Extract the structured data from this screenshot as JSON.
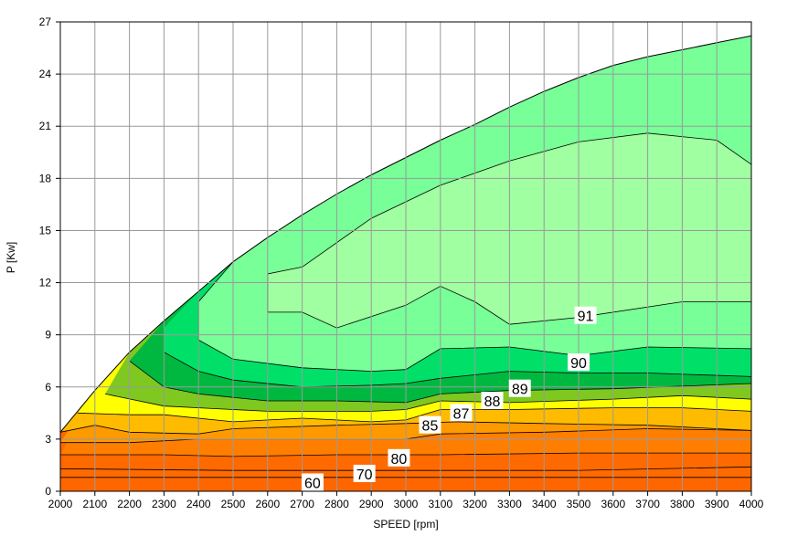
{
  "chart_data": {
    "type": "contour",
    "xlabel": "SPEED [rpm]",
    "ylabel": "P [Kw]",
    "xlim": [
      2000,
      4000
    ],
    "ylim": [
      0,
      27
    ],
    "x_ticks": [
      "2000",
      "2100",
      "2200",
      "2300",
      "2400",
      "2500",
      "2600",
      "2700",
      "2800",
      "2900",
      "3000",
      "3100",
      "3200",
      "3300",
      "3400",
      "3500",
      "3600",
      "3700",
      "3800",
      "3900",
      "4000"
    ],
    "y_ticks": [
      "0",
      "3",
      "6",
      "9",
      "12",
      "15",
      "18",
      "21",
      "24",
      "27"
    ],
    "grid": true,
    "envelope": [
      {
        "x": 2000,
        "y": 3.4
      },
      {
        "x": 2100,
        "y": 5.8
      },
      {
        "x": 2200,
        "y": 8.0
      },
      {
        "x": 2300,
        "y": 9.8
      },
      {
        "x": 2400,
        "y": 11.5
      },
      {
        "x": 2500,
        "y": 13.2
      },
      {
        "x": 2600,
        "y": 14.6
      },
      {
        "x": 2700,
        "y": 15.9
      },
      {
        "x": 2800,
        "y": 17.1
      },
      {
        "x": 2900,
        "y": 18.2
      },
      {
        "x": 3000,
        "y": 19.2
      },
      {
        "x": 3100,
        "y": 20.2
      },
      {
        "x": 3200,
        "y": 21.1
      },
      {
        "x": 3300,
        "y": 22.1
      },
      {
        "x": 3400,
        "y": 23.0
      },
      {
        "x": 3500,
        "y": 23.8
      },
      {
        "x": 3600,
        "y": 24.5
      },
      {
        "x": 3700,
        "y": 25.0
      },
      {
        "x": 3800,
        "y": 25.4
      },
      {
        "x": 3900,
        "y": 25.8
      },
      {
        "x": 4000,
        "y": 26.2
      }
    ],
    "levels": [
      {
        "label": "",
        "color": "#ff6a00",
        "boundary": [
          {
            "x": 2000,
            "y": 0.8
          },
          {
            "x": 2500,
            "y": 0.8
          },
          {
            "x": 3000,
            "y": 0.8
          },
          {
            "x": 3500,
            "y": 0.8
          },
          {
            "x": 4000,
            "y": 0.8
          }
        ]
      },
      {
        "label": "60",
        "color": "#ff6a00",
        "boundary": [
          {
            "x": 2000,
            "y": 1.3
          },
          {
            "x": 2500,
            "y": 1.2
          },
          {
            "x": 3000,
            "y": 1.2
          },
          {
            "x": 3500,
            "y": 1.2
          },
          {
            "x": 4000,
            "y": 1.4
          }
        ]
      },
      {
        "label": "70",
        "color": "#ff7e00",
        "boundary": [
          {
            "x": 2000,
            "y": 2.1
          },
          {
            "x": 2300,
            "y": 2.1
          },
          {
            "x": 2500,
            "y": 2.0
          },
          {
            "x": 2800,
            "y": 2.1
          },
          {
            "x": 3100,
            "y": 2.1
          },
          {
            "x": 3500,
            "y": 2.2
          },
          {
            "x": 4000,
            "y": 2.2
          }
        ]
      },
      {
        "label": "80",
        "color": "#ff9900",
        "boundary": [
          {
            "x": 2000,
            "y": 2.8
          },
          {
            "x": 2200,
            "y": 2.8
          },
          {
            "x": 2400,
            "y": 3.0
          },
          {
            "x": 2700,
            "y": 3.0
          },
          {
            "x": 3000,
            "y": 3.0
          },
          {
            "x": 3100,
            "y": 3.3
          },
          {
            "x": 3400,
            "y": 3.4
          },
          {
            "x": 3700,
            "y": 3.6
          },
          {
            "x": 4000,
            "y": 3.5
          }
        ]
      },
      {
        "label": "",
        "color": "#ffbb00",
        "boundary": [
          {
            "x": 2000,
            "y": 3.4
          },
          {
            "x": 2100,
            "y": 3.8
          },
          {
            "x": 2200,
            "y": 3.4
          },
          {
            "x": 2400,
            "y": 3.3
          },
          {
            "x": 2500,
            "y": 3.6
          },
          {
            "x": 2800,
            "y": 3.8
          },
          {
            "x": 3000,
            "y": 3.9
          },
          {
            "x": 3150,
            "y": 4.0
          },
          {
            "x": 3400,
            "y": 3.9
          },
          {
            "x": 3700,
            "y": 3.8
          },
          {
            "x": 4000,
            "y": 3.5
          }
        ]
      },
      {
        "label": "85",
        "color": "#ffff00",
        "boundary": [
          {
            "x": 2050,
            "y": 4.5
          },
          {
            "x": 2200,
            "y": 4.4
          },
          {
            "x": 2300,
            "y": 4.4
          },
          {
            "x": 2500,
            "y": 4.0
          },
          {
            "x": 2700,
            "y": 4.2
          },
          {
            "x": 2900,
            "y": 4.0
          },
          {
            "x": 3000,
            "y": 4.1
          },
          {
            "x": 3100,
            "y": 4.7
          },
          {
            "x": 3300,
            "y": 4.7
          },
          {
            "x": 3600,
            "y": 4.8
          },
          {
            "x": 3800,
            "y": 4.8
          },
          {
            "x": 4000,
            "y": 4.6
          }
        ]
      },
      {
        "label": "87",
        "color": "#7ec820",
        "boundary": [
          {
            "x": 2130,
            "y": 5.6
          },
          {
            "x": 2300,
            "y": 4.9
          },
          {
            "x": 2400,
            "y": 4.8
          },
          {
            "x": 2600,
            "y": 4.6
          },
          {
            "x": 2900,
            "y": 4.6
          },
          {
            "x": 3000,
            "y": 4.7
          },
          {
            "x": 3100,
            "y": 5.2
          },
          {
            "x": 3300,
            "y": 5.1
          },
          {
            "x": 3600,
            "y": 5.3
          },
          {
            "x": 3800,
            "y": 5.5
          },
          {
            "x": 4000,
            "y": 5.3
          }
        ]
      },
      {
        "label": "88",
        "color": "#00b840",
        "boundary": [
          {
            "x": 2200,
            "y": 7.5
          },
          {
            "x": 2300,
            "y": 6.0
          },
          {
            "x": 2400,
            "y": 5.6
          },
          {
            "x": 2600,
            "y": 5.2
          },
          {
            "x": 2800,
            "y": 5.2
          },
          {
            "x": 3000,
            "y": 5.1
          },
          {
            "x": 3100,
            "y": 5.6
          },
          {
            "x": 3300,
            "y": 5.8
          },
          {
            "x": 3600,
            "y": 5.9
          },
          {
            "x": 4000,
            "y": 6.2
          }
        ]
      },
      {
        "label": "89",
        "color": "#00e068",
        "boundary": [
          {
            "x": 2300,
            "y": 9.4
          },
          {
            "x": 2300,
            "y": 8.0
          },
          {
            "x": 2400,
            "y": 6.9
          },
          {
            "x": 2500,
            "y": 6.4
          },
          {
            "x": 2700,
            "y": 6.0
          },
          {
            "x": 2900,
            "y": 6.1
          },
          {
            "x": 3000,
            "y": 6.2
          },
          {
            "x": 3100,
            "y": 6.5
          },
          {
            "x": 3300,
            "y": 6.9
          },
          {
            "x": 3500,
            "y": 6.8
          },
          {
            "x": 3700,
            "y": 6.8
          },
          {
            "x": 4000,
            "y": 6.6
          }
        ]
      },
      {
        "label": "90",
        "color": "#78ff98",
        "boundary": [
          {
            "x": 2500,
            "y": 13.2
          },
          {
            "x": 2400,
            "y": 10.9
          },
          {
            "x": 2400,
            "y": 8.7
          },
          {
            "x": 2500,
            "y": 7.6
          },
          {
            "x": 2700,
            "y": 7.1
          },
          {
            "x": 2900,
            "y": 6.9
          },
          {
            "x": 3000,
            "y": 7.0
          },
          {
            "x": 3100,
            "y": 8.2
          },
          {
            "x": 3300,
            "y": 8.3
          },
          {
            "x": 3500,
            "y": 7.8
          },
          {
            "x": 3700,
            "y": 8.3
          },
          {
            "x": 4000,
            "y": 8.2
          }
        ]
      },
      {
        "label": "91",
        "color": "#a0ffa0",
        "boundary": [
          {
            "x": 2700,
            "y": 12.9
          },
          {
            "x": 2900,
            "y": 15.7
          },
          {
            "x": 3100,
            "y": 17.6
          },
          {
            "x": 3300,
            "y": 19.0
          },
          {
            "x": 3500,
            "y": 20.1
          },
          {
            "x": 3700,
            "y": 20.6
          },
          {
            "x": 3900,
            "y": 20.2
          },
          {
            "x": 4000,
            "y": 18.8
          },
          {
            "x": 4000,
            "y": 10.9
          },
          {
            "x": 3800,
            "y": 10.9
          },
          {
            "x": 3500,
            "y": 10.0
          },
          {
            "x": 3300,
            "y": 9.6
          },
          {
            "x": 3200,
            "y": 10.9
          },
          {
            "x": 3100,
            "y": 11.8
          },
          {
            "x": 3000,
            "y": 10.7
          },
          {
            "x": 2800,
            "y": 9.4
          },
          {
            "x": 2700,
            "y": 10.3
          },
          {
            "x": 2600,
            "y": 10.3
          },
          {
            "x": 2600,
            "y": 12.5
          }
        ]
      }
    ],
    "contour_labels": [
      {
        "text": "60",
        "x": 2730,
        "y": 0.5
      },
      {
        "text": "70",
        "x": 2880,
        "y": 1.0
      },
      {
        "text": "80",
        "x": 2980,
        "y": 1.9
      },
      {
        "text": "85",
        "x": 3070,
        "y": 3.8
      },
      {
        "text": "87",
        "x": 3160,
        "y": 4.5
      },
      {
        "text": "88",
        "x": 3250,
        "y": 5.2
      },
      {
        "text": "89",
        "x": 3330,
        "y": 5.9
      },
      {
        "text": "90",
        "x": 3500,
        "y": 7.4
      },
      {
        "text": "91",
        "x": 3520,
        "y": 10.1
      }
    ]
  }
}
